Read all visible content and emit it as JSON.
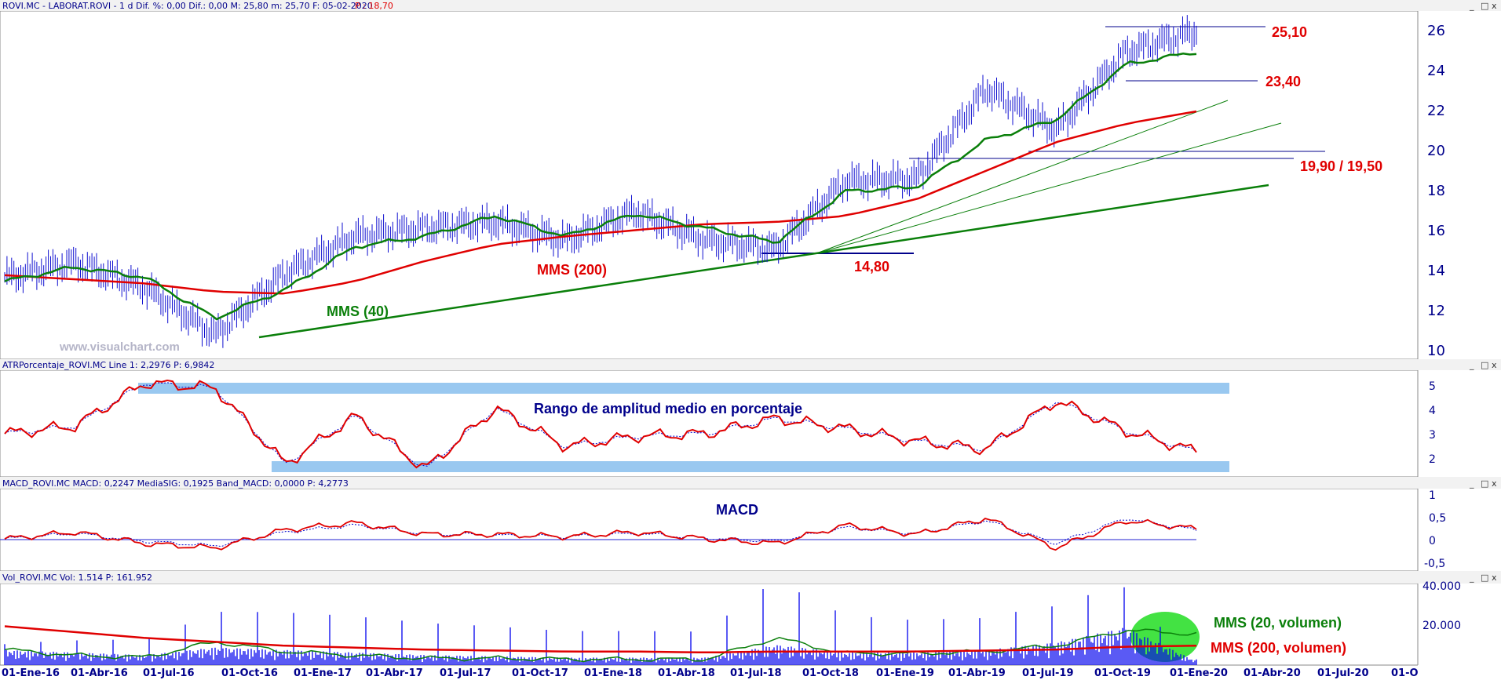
{
  "panels": {
    "price": {
      "header_main": "ROVI.MC - LABORAT.ROVI - 1 d Dif. %: 0,00 Dif.: 0,00 M: 25,80 m: 25,70 F: 05-02-2020",
      "header_extra": "P : 18,70",
      "watermark": "www.visualchart.com",
      "y_ticks": [
        "26",
        "24",
        "22",
        "20",
        "18",
        "16",
        "14",
        "12",
        "10"
      ]
    },
    "atr": {
      "header": "ATRPorcentaje_ROVI.MC Line 1: 2,2976 P: 6,9842",
      "title": "Rango de amplitud medio en porcentaje",
      "y_ticks": [
        "5",
        "4",
        "3",
        "2"
      ]
    },
    "macd": {
      "header": "MACD_ROVI.MC MACD: 0,2247 MediaSIG: 0,1925 Band_MACD: 0,0000 P: 4,2773",
      "title": "MACD",
      "y_ticks": [
        "1",
        "0,5",
        "0",
        "-0,5"
      ]
    },
    "volume": {
      "header": "Vol_ROVI.MC Vol: 1.514 P: 161.952",
      "y_ticks": [
        "40.000",
        "20.000"
      ]
    }
  },
  "window_buttons": [
    "_",
    "□",
    "x"
  ],
  "x_ticks": [
    "01-Ene-16",
    "01-Abr-16",
    "01-Jul-16",
    "01-Oct-16",
    "01-Ene-17",
    "01-Abr-17",
    "01-Jul-17",
    "01-Oct-17",
    "01-Ene-18",
    "01-Abr-18",
    "01-Jul-18",
    "01-Oct-18",
    "01-Ene-19",
    "01-Abr-19",
    "01-Jul-19",
    "01-Oct-19",
    "01-Ene-20",
    "01-Abr-20",
    "01-Jul-20",
    "01-O"
  ],
  "annotations": {
    "resistance_high": "25,10",
    "support_high": "23,40",
    "support_zone": "19,90 / 19,50",
    "support_low": "14,80",
    "mms200": "MMS (200)",
    "mms40": "MMS (40)",
    "vol_mms20": "MMS (20, volumen)",
    "vol_mms200": "MMS (200, volumen)"
  },
  "colors": {
    "price_bars": "#1010d0",
    "mms40": "#0a7f0a",
    "mms200": "#e00000",
    "trendline": "#0a7f0a",
    "level_lines": "#00008b",
    "atr_line": "#e00000",
    "atr_signal": "#0000cc",
    "atr_bands": "#99c8f0",
    "volume_bars": "#0000ee",
    "volume_highlight": "#22dd22"
  },
  "chart_data": [
    {
      "type": "line",
      "title": "ROVI.MC - LABORAT.ROVI - 1 d",
      "x": [
        "01-Ene-16",
        "01-Abr-16",
        "01-Jul-16",
        "01-Oct-16",
        "01-Ene-17",
        "01-Abr-17",
        "01-Jul-17",
        "01-Oct-17",
        "01-Ene-18",
        "01-Abr-18",
        "01-Jul-18",
        "01-Oct-18",
        "01-Ene-19",
        "01-Abr-19",
        "01-Jul-19",
        "01-Oct-19",
        "01-Ene-20",
        "05-Feb-20"
      ],
      "series": [
        {
          "name": "price",
          "values": [
            13.8,
            14.5,
            13.3,
            11.0,
            14.0,
            15.8,
            16.2,
            16.5,
            15.6,
            17.0,
            15.6,
            15.2,
            18.5,
            18.6,
            23.0,
            21.0,
            24.8,
            25.8
          ]
        },
        {
          "name": "MMS (40)",
          "values": [
            13.6,
            14.3,
            13.8,
            11.8,
            13.2,
            15.3,
            15.8,
            16.8,
            15.8,
            16.9,
            16.2,
            15.5,
            18.0,
            18.2,
            20.5,
            21.5,
            24.2,
            24.8
          ]
        },
        {
          "name": "MMS (200)",
          "values": [
            13.9,
            13.7,
            13.5,
            13.1,
            13.0,
            13.6,
            14.6,
            15.4,
            15.8,
            16.1,
            16.4,
            16.5,
            16.8,
            17.6,
            19.0,
            20.4,
            21.3,
            21.9
          ]
        }
      ],
      "levels": [
        25.1,
        23.4,
        19.9,
        19.5,
        14.8
      ],
      "ylim": [
        9.8,
        26.8
      ]
    },
    {
      "type": "line",
      "title": "Rango de amplitud medio en porcentaje",
      "x": [
        "01-Ene-16",
        "01-Abr-16",
        "01-Jul-16",
        "01-Oct-16",
        "01-Ene-17",
        "01-Abr-17",
        "01-Jul-17",
        "01-Oct-17",
        "01-Ene-18",
        "01-Abr-18",
        "01-Jul-18",
        "01-Oct-18",
        "01-Ene-19",
        "01-Abr-19",
        "01-Jul-19",
        "01-Oct-19",
        "01-Ene-20",
        "05-Feb-20"
      ],
      "series": [
        {
          "name": "Line 1",
          "values": [
            3.0,
            3.3,
            5.0,
            4.8,
            1.8,
            3.7,
            1.6,
            4.0,
            2.5,
            2.9,
            3.0,
            3.6,
            3.2,
            2.7,
            2.4,
            4.3,
            3.1,
            2.3
          ]
        }
      ],
      "bands": [
        1.6,
        5.0
      ],
      "ylim": [
        1.3,
        5.5
      ]
    },
    {
      "type": "line",
      "title": "MACD",
      "x": [
        "01-Ene-16",
        "01-Abr-16",
        "01-Jul-16",
        "01-Oct-16",
        "01-Ene-17",
        "01-Abr-17",
        "01-Jul-17",
        "01-Oct-17",
        "01-Ene-18",
        "01-Abr-18",
        "01-Jul-18",
        "01-Oct-18",
        "01-Ene-19",
        "01-Abr-19",
        "01-Jul-19",
        "01-Oct-19",
        "01-Ene-20",
        "05-Feb-20"
      ],
      "series": [
        {
          "name": "MACD",
          "values": [
            0.0,
            0.15,
            -0.1,
            -0.2,
            0.2,
            0.35,
            0.1,
            0.1,
            0.05,
            0.15,
            0.0,
            -0.1,
            0.3,
            0.1,
            0.45,
            -0.2,
            0.4,
            0.22
          ]
        },
        {
          "name": "MediaSIG",
          "values": [
            0.0,
            0.12,
            -0.05,
            -0.15,
            0.15,
            0.3,
            0.12,
            0.08,
            0.05,
            0.12,
            0.02,
            -0.05,
            0.25,
            0.12,
            0.4,
            -0.1,
            0.45,
            0.19
          ]
        }
      ],
      "ylim": [
        -0.7,
        1.1
      ]
    },
    {
      "type": "bar",
      "title": "Vol_ROVI.MC",
      "x": [
        "01-Ene-16",
        "01-Abr-16",
        "01-Jul-16",
        "01-Oct-16",
        "01-Ene-17",
        "01-Abr-17",
        "01-Jul-17",
        "01-Oct-17",
        "01-Ene-18",
        "01-Abr-18",
        "01-Jul-18",
        "01-Oct-18",
        "01-Ene-19",
        "01-Abr-19",
        "01-Jul-19",
        "01-Oct-19",
        "01-Ene-20",
        "05-Feb-20"
      ],
      "series": [
        {
          "name": "Vol",
          "values": [
            6000,
            5000,
            4000,
            7000,
            6000,
            5000,
            4000,
            3500,
            3000,
            3000,
            3000,
            8000,
            5000,
            5000,
            6000,
            9000,
            15000,
            1514
          ]
        },
        {
          "name": "MMS (20, volumen)",
          "values": [
            8000,
            5000,
            4000,
            12000,
            7000,
            5000,
            3500,
            3500,
            3000,
            3000,
            3000,
            14000,
            6000,
            6000,
            7000,
            10000,
            18000,
            16000
          ]
        },
        {
          "name": "MMS (200, volumen)",
          "values": [
            20000,
            17000,
            14000,
            12000,
            10000,
            9000,
            8000,
            7500,
            7000,
            7000,
            6500,
            7000,
            7000,
            7000,
            7500,
            8000,
            9500,
            10000
          ]
        }
      ],
      "ylim": [
        0,
        42000
      ]
    }
  ]
}
